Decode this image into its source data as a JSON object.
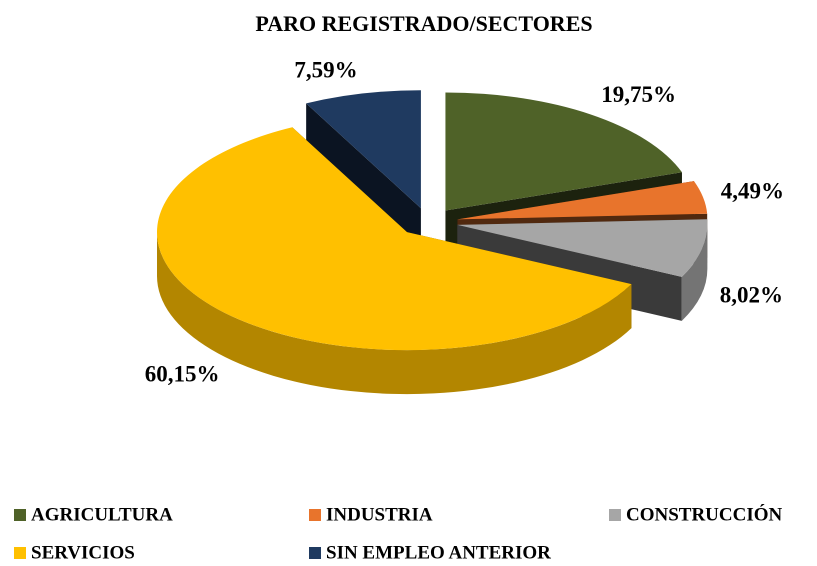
{
  "chart_data": {
    "type": "pie",
    "title": "PARO REGISTRADO/SECTORES",
    "categories": [
      "AGRICULTURA",
      "INDUSTRIA",
      "CONSTRUCCIÓN",
      "SERVICIOS",
      "SIN EMPLEO ANTERIOR"
    ],
    "values": [
      19.75,
      4.49,
      8.02,
      60.15,
      7.59
    ],
    "value_labels": [
      "19,75%",
      "4,49%",
      "8,02%",
      "60,15%",
      "7,59%"
    ],
    "colors": [
      "#4f6228",
      "#e8742c",
      "#a6a6a6",
      "#ffc000",
      "#1f3a60"
    ],
    "legend": "bottom"
  }
}
